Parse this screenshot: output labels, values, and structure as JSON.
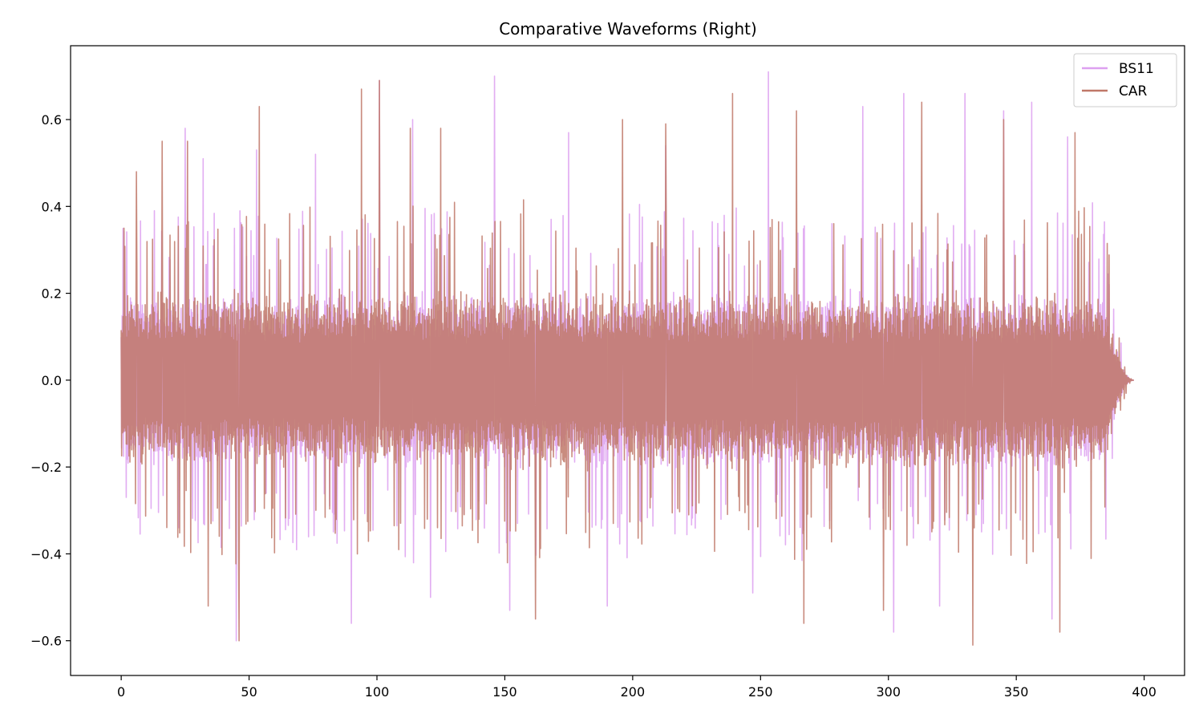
{
  "chart_data": {
    "type": "line",
    "title": "Comparative Waveforms (Right)",
    "xlabel": "",
    "ylabel": "",
    "xlim": [
      -19.8,
      415.8
    ],
    "ylim": [
      -0.68,
      0.77
    ],
    "x_ticks": [
      0,
      50,
      100,
      150,
      200,
      250,
      300,
      350,
      400
    ],
    "x_tick_labels": [
      "0",
      "50",
      "100",
      "150",
      "200",
      "250",
      "300",
      "350",
      "400"
    ],
    "y_ticks": [
      -0.6,
      -0.4,
      -0.2,
      0.0,
      0.2,
      0.4,
      0.6
    ],
    "y_tick_labels": [
      "−0.6",
      "−0.4",
      "−0.2",
      "0.0",
      "0.2",
      "0.4",
      "0.6"
    ],
    "grid": false,
    "legend_position": "top-right",
    "series": [
      {
        "name": "BS11",
        "color": "#dda0f0",
        "opacity": 0.85,
        "x_range": [
          0,
          396
        ],
        "active_end": 385,
        "body_amplitude": 0.2,
        "peaks": [
          {
            "x": 2,
            "y": -0.27
          },
          {
            "x": 13,
            "y": 0.39
          },
          {
            "x": 25,
            "y": 0.58
          },
          {
            "x": 32,
            "y": 0.51
          },
          {
            "x": 45,
            "y": -0.6
          },
          {
            "x": 53,
            "y": 0.53
          },
          {
            "x": 76,
            "y": 0.52
          },
          {
            "x": 90,
            "y": -0.56
          },
          {
            "x": 101,
            "y": 0.69
          },
          {
            "x": 114,
            "y": 0.6
          },
          {
            "x": 121,
            "y": -0.5
          },
          {
            "x": 146,
            "y": 0.7
          },
          {
            "x": 152,
            "y": -0.53
          },
          {
            "x": 175,
            "y": 0.57
          },
          {
            "x": 190,
            "y": -0.52
          },
          {
            "x": 213,
            "y": 0.54
          },
          {
            "x": 247,
            "y": -0.49
          },
          {
            "x": 253,
            "y": 0.71
          },
          {
            "x": 290,
            "y": 0.63
          },
          {
            "x": 302,
            "y": -0.58
          },
          {
            "x": 306,
            "y": 0.66
          },
          {
            "x": 320,
            "y": -0.52
          },
          {
            "x": 330,
            "y": 0.66
          },
          {
            "x": 345,
            "y": 0.62
          },
          {
            "x": 356,
            "y": 0.64
          },
          {
            "x": 364,
            "y": -0.55
          },
          {
            "x": 370,
            "y": 0.56
          }
        ]
      },
      {
        "name": "CAR",
        "color": "#c07868",
        "opacity": 0.85,
        "x_range": [
          0,
          396
        ],
        "active_end": 385,
        "body_amplitude": 0.2,
        "peaks": [
          {
            "x": 1,
            "y": 0.35
          },
          {
            "x": 6,
            "y": 0.48
          },
          {
            "x": 16,
            "y": 0.55
          },
          {
            "x": 26,
            "y": 0.55
          },
          {
            "x": 34,
            "y": -0.52
          },
          {
            "x": 46,
            "y": -0.6
          },
          {
            "x": 54,
            "y": 0.63
          },
          {
            "x": 94,
            "y": 0.67
          },
          {
            "x": 101,
            "y": 0.69
          },
          {
            "x": 113,
            "y": 0.58
          },
          {
            "x": 125,
            "y": 0.58
          },
          {
            "x": 162,
            "y": -0.55
          },
          {
            "x": 196,
            "y": 0.6
          },
          {
            "x": 213,
            "y": 0.59
          },
          {
            "x": 239,
            "y": 0.66
          },
          {
            "x": 264,
            "y": 0.62
          },
          {
            "x": 267,
            "y": -0.56
          },
          {
            "x": 298,
            "y": -0.53
          },
          {
            "x": 313,
            "y": 0.64
          },
          {
            "x": 333,
            "y": -0.61
          },
          {
            "x": 345,
            "y": 0.6
          },
          {
            "x": 367,
            "y": -0.58
          },
          {
            "x": 373,
            "y": 0.57
          }
        ]
      }
    ]
  }
}
